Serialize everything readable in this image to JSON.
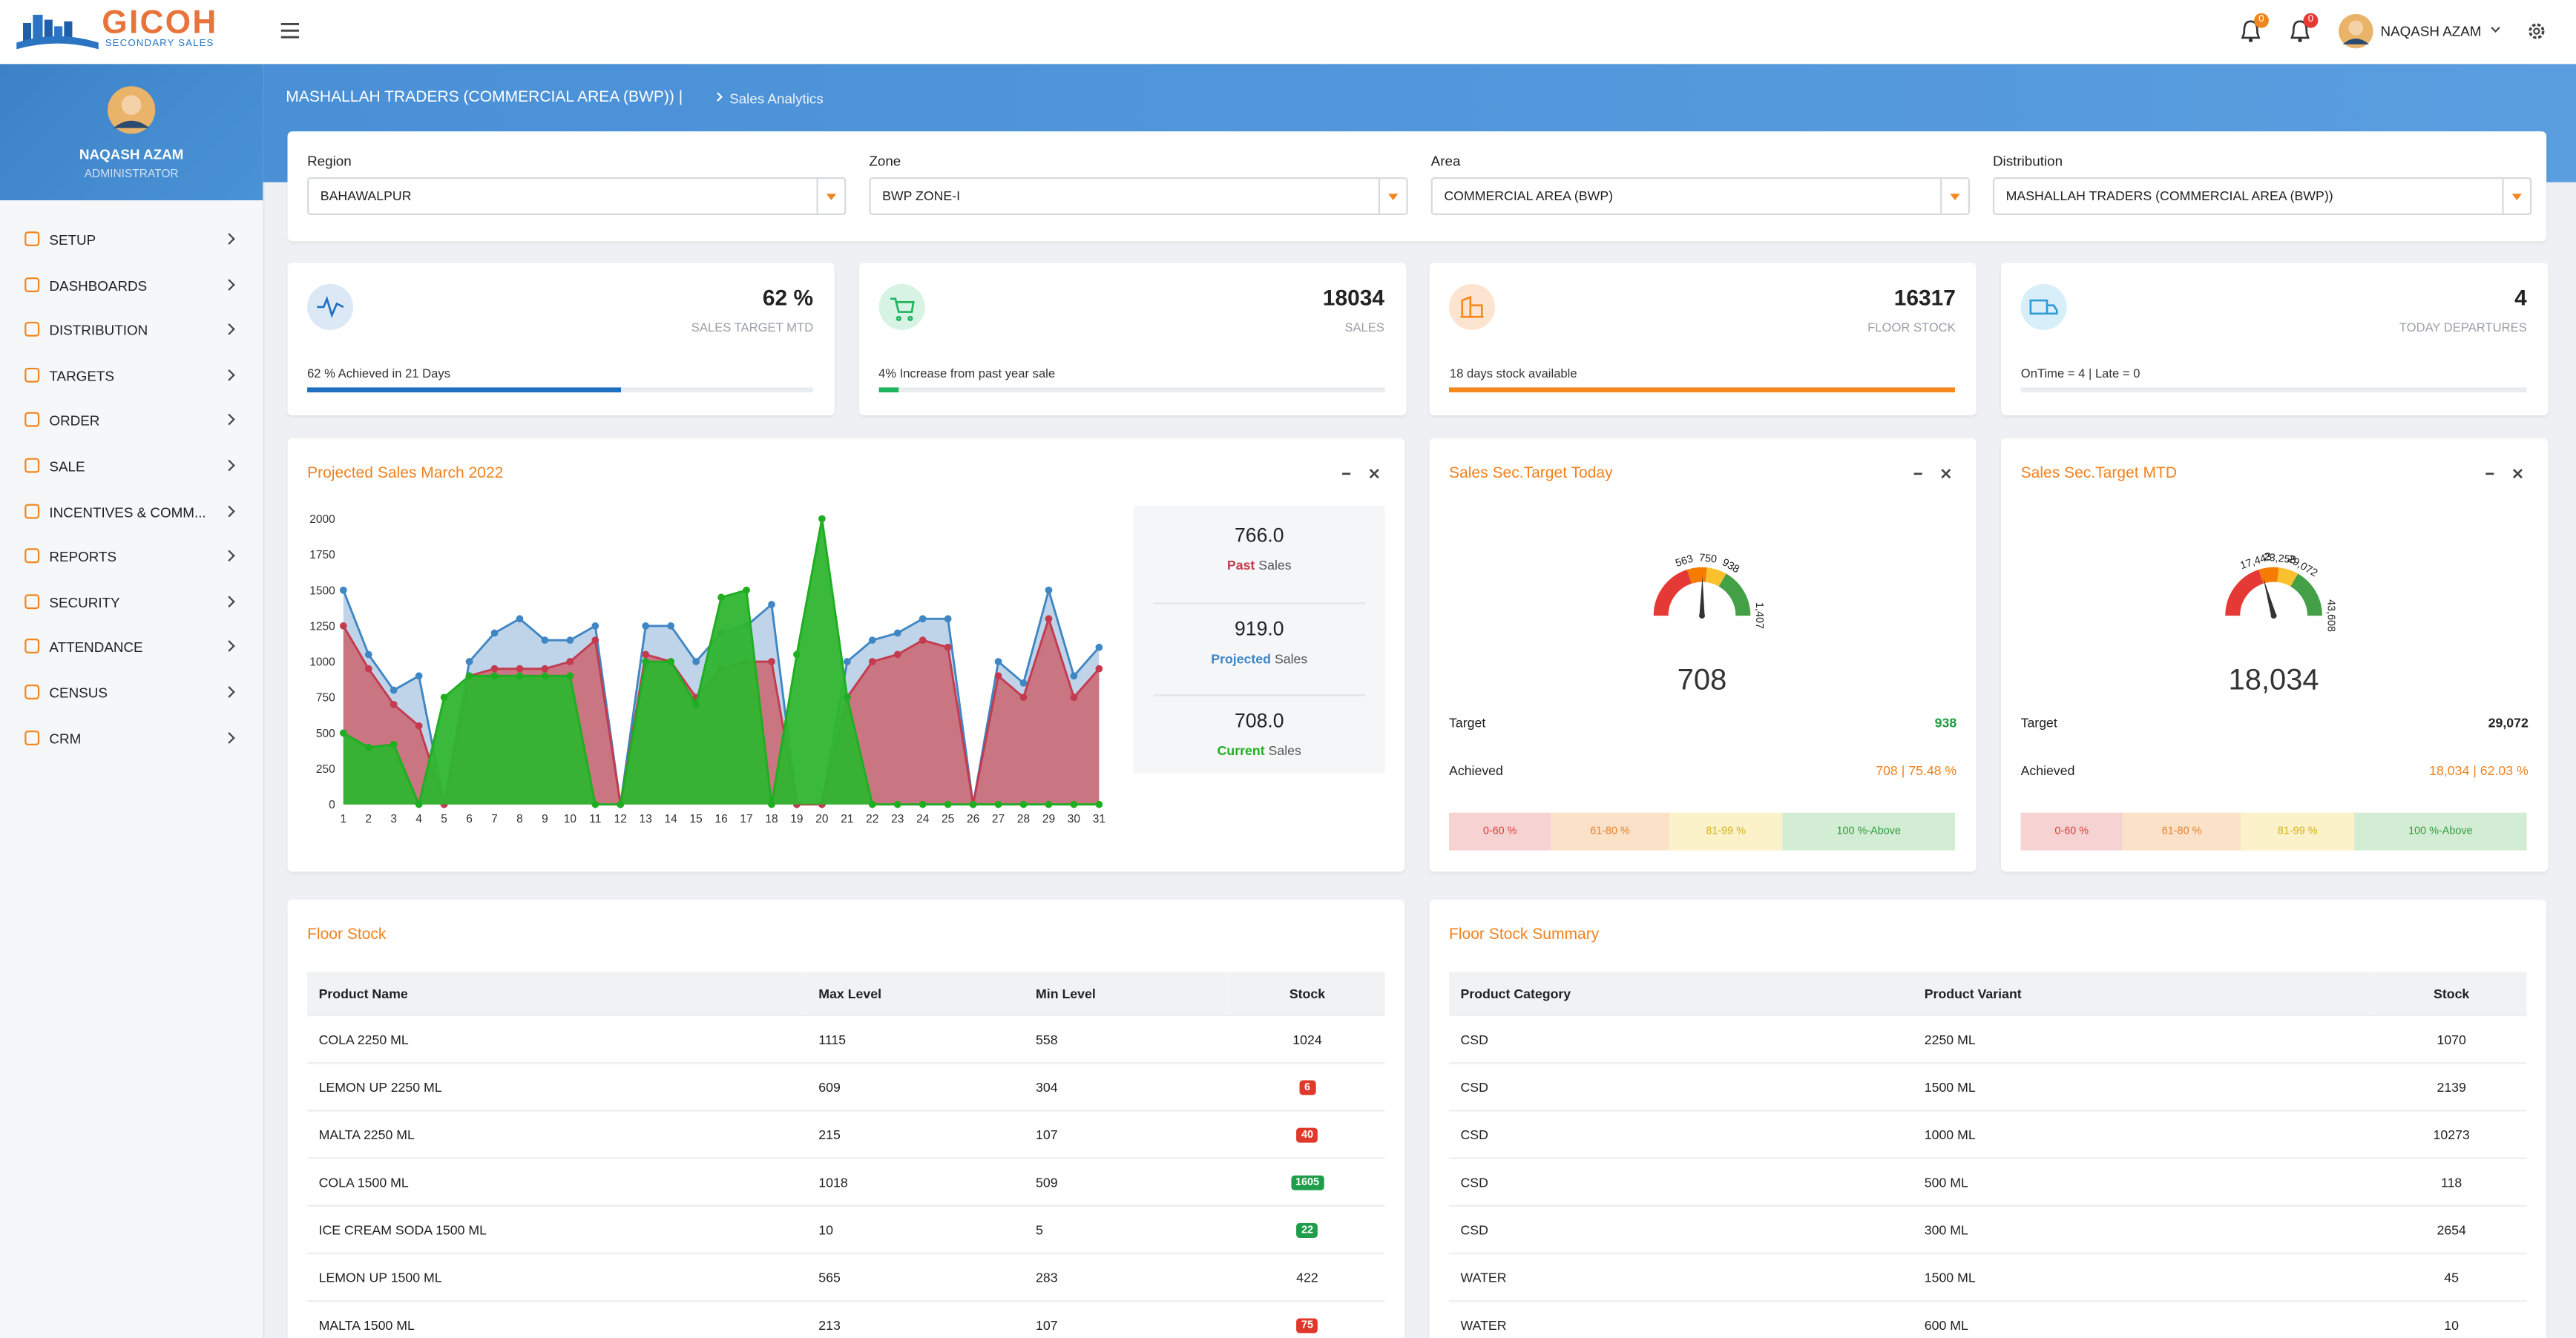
{
  "header": {
    "logo_title": "GICOH",
    "logo_subtitle": "SECONDARY SALES",
    "notification_counts": [
      0,
      0
    ],
    "user_name": "NAQASH AZAM"
  },
  "sidebar": {
    "user_name": "NAQASH AZAM",
    "user_role": "ADMINISTRATOR",
    "menu": [
      "SETUP",
      "DASHBOARDS",
      "DISTRIBUTION",
      "TARGETS",
      "ORDER",
      "SALE",
      "INCENTIVES & COMM...",
      "REPORTS",
      "SECURITY",
      "ATTENDANCE",
      "CENSUS",
      "CRM"
    ]
  },
  "breadcrumb": {
    "parent": "MASHALLAH TRADERS (COMMERCIAL AREA (BWP)) |",
    "current": "Sales Analytics"
  },
  "filters": [
    {
      "label": "Region",
      "value": "BAHAWALPUR"
    },
    {
      "label": "Zone",
      "value": "BWP ZONE-I"
    },
    {
      "label": "Area",
      "value": "COMMERCIAL AREA (BWP)"
    },
    {
      "label": "Distribution",
      "value": "MASHALLAH TRADERS (COMMERCIAL AREA (BWP))"
    }
  ],
  "kpis": [
    {
      "value": "62 %",
      "label": "SALES TARGET MTD",
      "note": "62 % Achieved in 21 Days",
      "progress": 62,
      "color": "#1f6fc1"
    },
    {
      "value": "18034",
      "label": "SALES",
      "note": "4% Increase from past year sale",
      "progress": 4,
      "color": "#1db45e"
    },
    {
      "value": "16317",
      "label": "FLOOR STOCK",
      "note": "18 days stock available",
      "progress": 100,
      "color": "#f5891f"
    },
    {
      "value": "4",
      "label": "TODAY DEPARTURES",
      "note": "OnTime = 4 | Late = 0",
      "progress": 0,
      "color": "#2d9bd8"
    }
  ],
  "projected_sales": {
    "type": "area",
    "title": "Projected Sales March 2022",
    "x": [
      1,
      2,
      3,
      4,
      5,
      6,
      7,
      8,
      9,
      10,
      11,
      12,
      13,
      14,
      15,
      16,
      17,
      18,
      19,
      20,
      21,
      22,
      23,
      24,
      25,
      26,
      27,
      28,
      29,
      30,
      31
    ],
    "ylim": [
      0,
      2000
    ],
    "yticks": [
      0,
      250,
      500,
      750,
      1000,
      1250,
      1500,
      1750,
      2000
    ],
    "series": [
      {
        "name": "Past",
        "color": "#c33b4e",
        "fill": "#c9707c",
        "values": [
          1250,
          950,
          700,
          550,
          0,
          900,
          950,
          950,
          950,
          1000,
          1150,
          0,
          1050,
          1000,
          750,
          950,
          1000,
          1000,
          0,
          0,
          750,
          1000,
          1050,
          1150,
          1100,
          0,
          900,
          750,
          1300,
          750,
          950
        ]
      },
      {
        "name": "Projected",
        "color": "#3f86c4",
        "fill": "#bcd2e8",
        "values": [
          1500,
          1050,
          800,
          900,
          0,
          1000,
          1200,
          1300,
          1150,
          1150,
          1250,
          0,
          1250,
          1250,
          1000,
          1200,
          1250,
          1400,
          0,
          0,
          1000,
          1150,
          1200,
          1300,
          1300,
          0,
          1000,
          850,
          1500,
          900,
          1100
        ]
      },
      {
        "name": "Current",
        "color": "#1fae22",
        "fill": "#2fb52f",
        "values": [
          500,
          400,
          420,
          0,
          750,
          900,
          900,
          900,
          900,
          900,
          0,
          0,
          1000,
          1000,
          700,
          1450,
          1500,
          0,
          1050,
          2000,
          750,
          0,
          0,
          0,
          0,
          0,
          0,
          0,
          0,
          0,
          0
        ]
      }
    ],
    "summary_values": [
      "766.0",
      "919.0",
      "708.0"
    ],
    "summary_label": "Sales"
  },
  "gauges": [
    {
      "title": "Sales Sec.Target Today",
      "value": 708,
      "ticks": [
        563,
        750,
        938,
        {
          "value": 1407,
          "label": "1,407"
        }
      ],
      "target_label": "Target",
      "target": "938",
      "achieved_label": "Achieved",
      "achieved": "708 | 75.48 %",
      "bands": [
        "0-60 %",
        "61-80 %",
        "81-99 %",
        "100 %-Above"
      ]
    },
    {
      "title": "Sales Sec.Target MTD",
      "value": 18034,
      "value_label": "18,034",
      "ticks": [
        {
          "value": 17443,
          "label": "17,443"
        },
        {
          "value": 23258,
          "label": "23,258"
        },
        {
          "value": 29072,
          "label": "29,072"
        },
        {
          "value": 43608,
          "label": "43,608"
        }
      ],
      "target_label": "Target",
      "target": "29,072",
      "achieved_label": "Achieved",
      "achieved": "18,034 | 62.03 %",
      "bands": [
        "0-60 %",
        "61-80 %",
        "81-99 %",
        "100 %-Above"
      ]
    }
  ],
  "floor_stock": {
    "title": "Floor Stock",
    "columns": [
      "Product Name",
      "Max Level",
      "Min Level",
      "Stock"
    ],
    "rows": [
      [
        "COLA 2250 ML",
        1115,
        558,
        1024
      ],
      [
        "LEMON UP 2250 ML",
        609,
        304,
        6
      ],
      [
        "MALTA 2250 ML",
        215,
        107,
        40
      ],
      [
        "COLA 1500 ML",
        1018,
        509,
        1605
      ],
      [
        "ICE CREAM SODA 1500 ML",
        10,
        5,
        22
      ],
      [
        "LEMON UP 1500 ML",
        565,
        283,
        422
      ],
      [
        "MALTA 1500 ML",
        213,
        107,
        75
      ]
    ]
  },
  "floor_stock_summary": {
    "title": "Floor Stock Summary",
    "columns": [
      "Product Category",
      "Product Variant",
      "Stock"
    ],
    "rows": [
      [
        "CSD",
        "2250 ML",
        1070
      ],
      [
        "CSD",
        "1500 ML",
        2139
      ],
      [
        "CSD",
        "1000 ML",
        10273
      ],
      [
        "CSD",
        "500 ML",
        118
      ],
      [
        "CSD",
        "300 ML",
        2654
      ],
      [
        "WATER",
        "1500 ML",
        45
      ],
      [
        "WATER",
        "600 ML",
        10
      ]
    ]
  }
}
